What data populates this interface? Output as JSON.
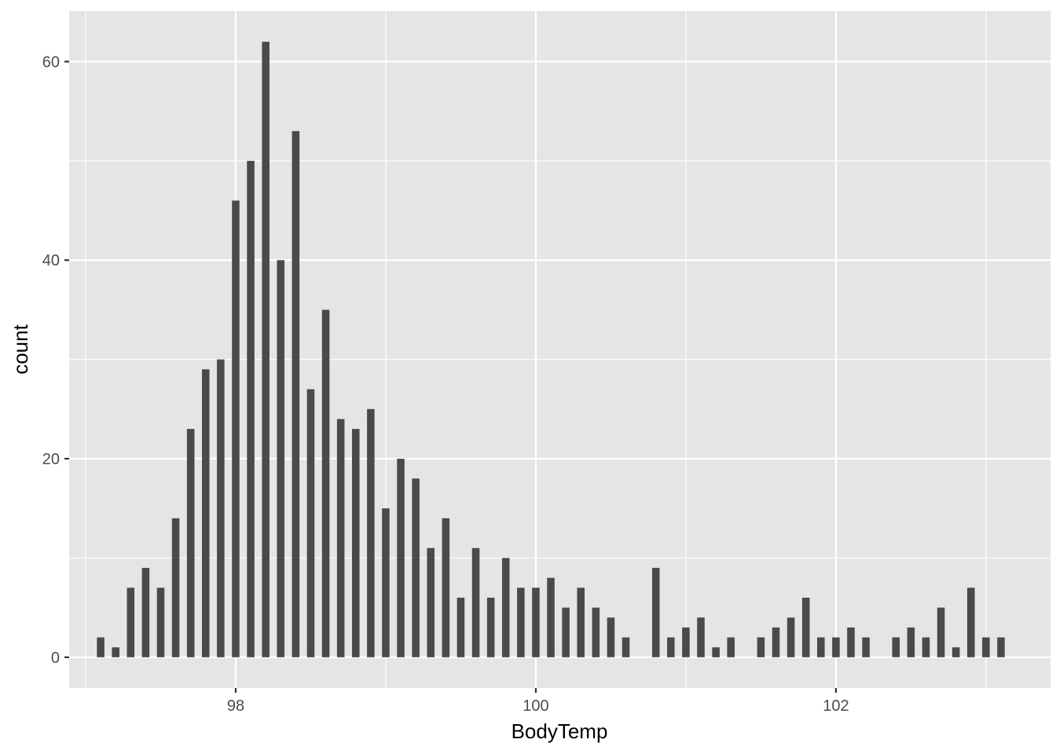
{
  "chart_data": {
    "type": "bar",
    "title": "",
    "xlabel": "BodyTemp",
    "ylabel": "count",
    "xlim": [
      96.89,
      103.43
    ],
    "ylim": [
      -3.1,
      65.1
    ],
    "x_ticks": [
      98,
      100,
      102
    ],
    "x_tick_labels": [
      "98",
      "100",
      "102"
    ],
    "y_ticks": [
      0,
      20,
      40,
      60
    ],
    "y_tick_labels": [
      "0",
      "20",
      "40",
      "60"
    ],
    "grid": true,
    "bar_width": 0.05,
    "colors": {
      "panel": "#e5e5e5",
      "grid": "#ffffff",
      "bar": "#4a4a4a",
      "tick_text": "#4d4d4d",
      "tick_mark": "#333333"
    },
    "x": [
      97.1,
      97.2,
      97.3,
      97.4,
      97.5,
      97.6,
      97.7,
      97.8,
      97.9,
      98.0,
      98.1,
      98.2,
      98.3,
      98.4,
      98.5,
      98.6,
      98.7,
      98.8,
      98.9,
      99.0,
      99.1,
      99.2,
      99.3,
      99.4,
      99.5,
      99.6,
      99.7,
      99.8,
      99.9,
      100.0,
      100.1,
      100.2,
      100.3,
      100.4,
      100.5,
      100.6,
      100.8,
      100.9,
      101.0,
      101.1,
      101.2,
      101.3,
      101.5,
      101.6,
      101.7,
      101.8,
      101.9,
      102.0,
      102.1,
      102.2,
      102.4,
      102.5,
      102.6,
      102.7,
      102.8,
      102.9,
      103.0,
      103.1
    ],
    "values": [
      2,
      1,
      7,
      9,
      7,
      14,
      23,
      29,
      30,
      46,
      50,
      62,
      40,
      53,
      27,
      35,
      24,
      23,
      25,
      15,
      20,
      18,
      11,
      14,
      6,
      11,
      6,
      10,
      7,
      7,
      8,
      5,
      7,
      5,
      4,
      2,
      9,
      2,
      3,
      4,
      1,
      2,
      2,
      3,
      4,
      6,
      2,
      2,
      3,
      2,
      2,
      3,
      2,
      5,
      1,
      7,
      2,
      2
    ]
  }
}
